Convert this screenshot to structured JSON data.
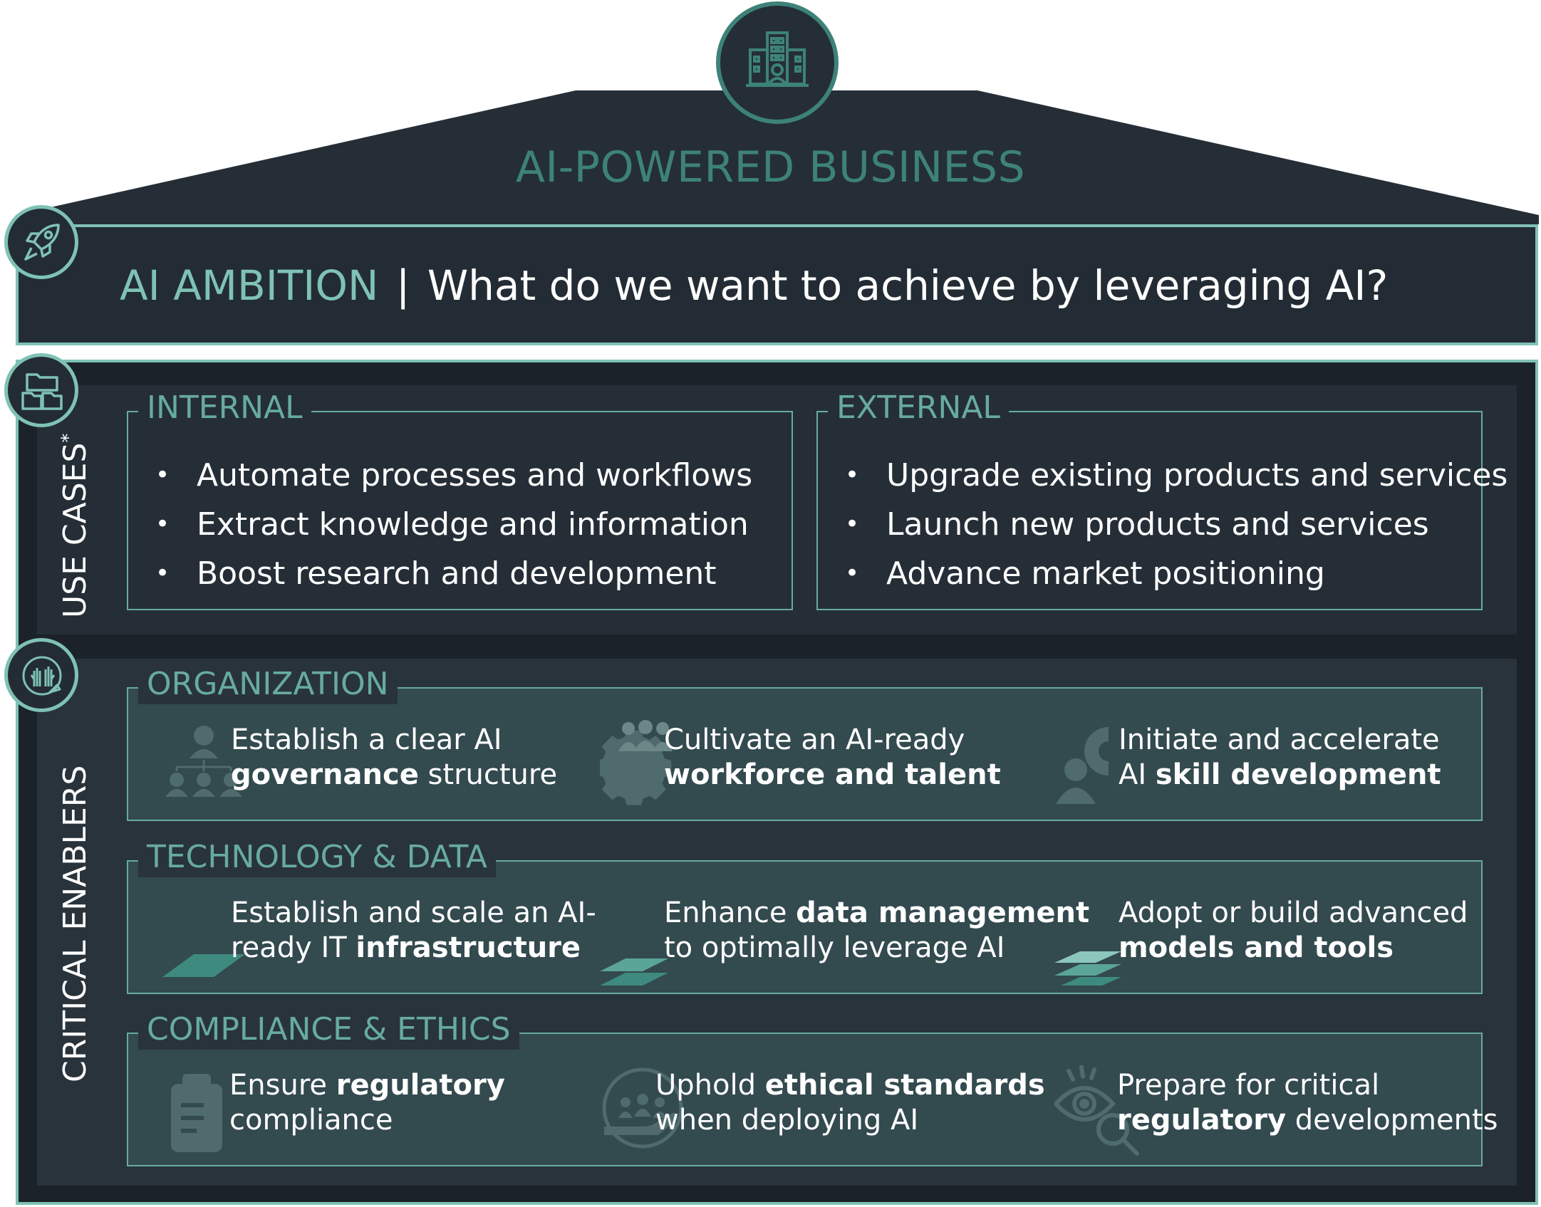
{
  "roof": {
    "title": "AI-POWERED BUSINESS",
    "icon": "office-building-icon"
  },
  "ambition": {
    "title": "AI AMBITION",
    "separator": "|",
    "question": "What do we want to achieve by leveraging AI?",
    "icon": "rocket-icon"
  },
  "use_cases": {
    "label": "USE CASES",
    "footnote_mark": "*",
    "icon": "folders-icon",
    "internal": {
      "title": "INTERNAL",
      "items": [
        "Automate processes and workflows",
        "Extract knowledge and information",
        "Boost research and development"
      ]
    },
    "external": {
      "title": "EXTERNAL",
      "items": [
        "Upgrade existing products and services",
        "Launch new products and services",
        "Advance market positioning"
      ]
    }
  },
  "critical_enablers": {
    "label": "CRITICAL ENABLERS",
    "icon": "hands-globe-icon",
    "organization": {
      "title": "ORGANIZATION",
      "items": [
        {
          "icon": "org-chart-icon",
          "line1": "Establish a clear AI",
          "bold": "governance",
          "rest": " structure"
        },
        {
          "icon": "team-gear-icon",
          "line1": "Cultivate an AI-ready",
          "bold": "workforce and talent",
          "rest": ""
        },
        {
          "icon": "person-learning-icon",
          "line1": "Initiate and accelerate",
          "pre": "AI ",
          "bold": "skill development",
          "rest": ""
        }
      ]
    },
    "technology": {
      "title": "TECHNOLOGY & DATA",
      "items": [
        {
          "icon": "single-layer-icon",
          "line1": "Establish and scale an AI-",
          "pre": "ready IT ",
          "bold": "infrastructure"
        },
        {
          "icon": "double-layer-icon",
          "pre": "Enhance ",
          "bold": "data management",
          "line2": "to optimally leverage AI"
        },
        {
          "icon": "triple-layer-icon",
          "line1": "Adopt or build advanced",
          "bold": "models and tools"
        }
      ]
    },
    "compliance": {
      "title": "COMPLIANCE & ETHICS",
      "items": [
        {
          "icon": "clipboard-icon",
          "pre": "Ensure ",
          "bold": "regulatory",
          "line2": "compliance"
        },
        {
          "icon": "people-hand-icon",
          "pre": "Uphold ",
          "bold": "ethical standards",
          "line2": "when deploying AI"
        },
        {
          "icon": "eye-search-icon",
          "line1": "Prepare for critical",
          "bold": "regulatory",
          "rest": " developments"
        }
      ]
    }
  },
  "colors": {
    "dark": "#232c34",
    "teal": "#3d8278",
    "light_teal": "#7fc2b5",
    "box_fill": "#334a4f"
  }
}
